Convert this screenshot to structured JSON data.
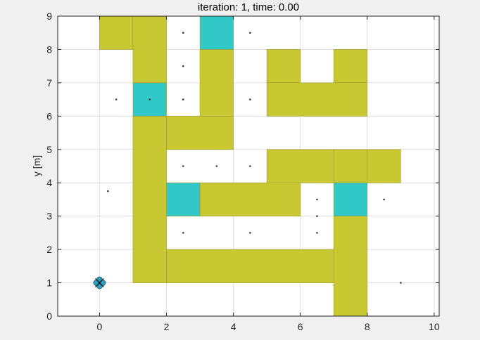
{
  "chart_data": {
    "type": "scatter",
    "title": "iteration: 1, time: 0.00",
    "xlabel": "",
    "ylabel": "y [m]",
    "xlim": [
      -1.25,
      10.15
    ],
    "ylim": [
      0,
      9
    ],
    "xticks": [
      0,
      2,
      4,
      6,
      8,
      10
    ],
    "yticks": [
      0,
      1,
      2,
      3,
      4,
      5,
      6,
      7,
      8,
      9
    ],
    "grid": true,
    "colors": {
      "obstacle": "#c8c832",
      "goal": "#33c8c8",
      "robot": "#2a9fc0",
      "waypoint": "#3c3c3c"
    },
    "obstacles": [
      [
        0,
        8,
        1,
        1
      ],
      [
        1,
        7,
        1,
        2
      ],
      [
        3,
        6,
        1,
        2
      ],
      [
        5,
        7,
        1,
        1
      ],
      [
        7,
        7,
        1,
        1
      ],
      [
        5,
        6,
        3,
        1
      ],
      [
        1,
        1,
        1,
        5
      ],
      [
        2,
        5,
        2,
        1
      ],
      [
        5,
        4,
        2,
        1
      ],
      [
        7,
        4,
        1,
        1
      ],
      [
        8,
        4,
        1,
        1
      ],
      [
        3,
        3,
        3,
        1
      ],
      [
        2,
        1,
        5,
        1
      ],
      [
        7,
        0,
        1,
        3
      ]
    ],
    "goals": [
      [
        3,
        8,
        1,
        1
      ],
      [
        1,
        6,
        1,
        1
      ],
      [
        2,
        3,
        1,
        1
      ],
      [
        7,
        3,
        1,
        1
      ]
    ],
    "waypoints": {
      "x": [
        2.5,
        4.5,
        2.5,
        0.5,
        1.5,
        2.5,
        4.5,
        2.5,
        3.5,
        4.5,
        0.25,
        6.5,
        8.5,
        6.5,
        2.5,
        4.5,
        6.5,
        9.0
      ],
      "y": [
        8.5,
        8.5,
        7.5,
        6.5,
        6.5,
        6.5,
        6.5,
        4.5,
        4.5,
        4.5,
        3.75,
        3.5,
        3.5,
        3.0,
        2.5,
        2.5,
        2.5,
        1.0
      ]
    },
    "robot": {
      "x": 0.0,
      "y": 1.0
    }
  }
}
